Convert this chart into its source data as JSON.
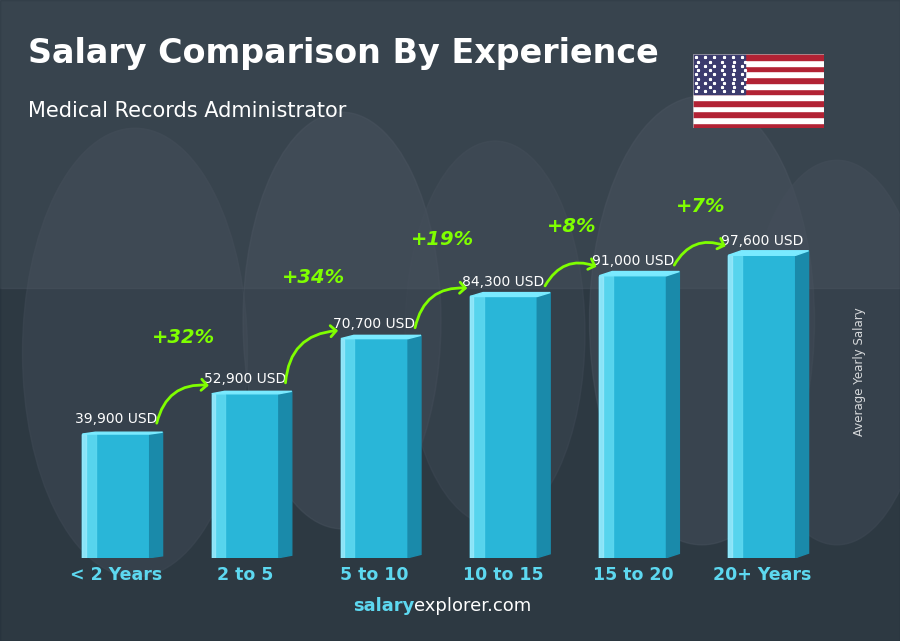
{
  "title": "Salary Comparison By Experience",
  "subtitle": "Medical Records Administrator",
  "categories": [
    "< 2 Years",
    "2 to 5",
    "5 to 10",
    "10 to 15",
    "15 to 20",
    "20+ Years"
  ],
  "values": [
    39900,
    52900,
    70700,
    84300,
    91000,
    97600
  ],
  "labels": [
    "39,900 USD",
    "52,900 USD",
    "70,700 USD",
    "84,300 USD",
    "91,000 USD",
    "97,600 USD"
  ],
  "pct_changes": [
    "+32%",
    "+34%",
    "+19%",
    "+8%",
    "+7%"
  ],
  "bar_color_front": "#29b6d8",
  "bar_color_light": "#5dd8f0",
  "bar_color_dark": "#1a8aaa",
  "bar_color_top": "#7aeaff",
  "bar_width": 0.52,
  "bg_color": "#4a5568",
  "title_color": "#ffffff",
  "subtitle_color": "#ffffff",
  "label_color": "#ffffff",
  "pct_color": "#7fff00",
  "xticklabel_color": "#5dd8f0",
  "footer_salary_color": "#5dd8f0",
  "footer_explorer_color": "#ffffff",
  "ylabel_text": "Average Yearly Salary",
  "ylim_max": 120000,
  "footer_bold": "salary",
  "footer_normal": "explorer.com"
}
